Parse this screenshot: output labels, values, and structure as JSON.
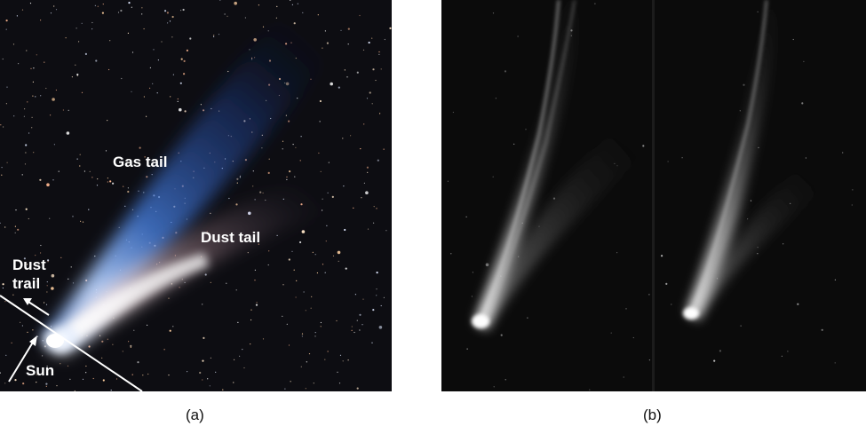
{
  "panel_a": {
    "labels": {
      "gas_tail": "Gas tail",
      "dust_tail": "Dust tail",
      "dust_trail_line1": "Dust",
      "dust_trail_line2": "trail",
      "sun": "Sun"
    },
    "caption": "(a)"
  },
  "panel_b": {
    "caption": "(b)"
  },
  "colors": {
    "gas_tail": "#3a6fd8",
    "dust_tail": "#e8c9cf",
    "label_text": "#ffffff",
    "sky_a": "#0d0d12",
    "sky_b": "#0b0b0b"
  }
}
